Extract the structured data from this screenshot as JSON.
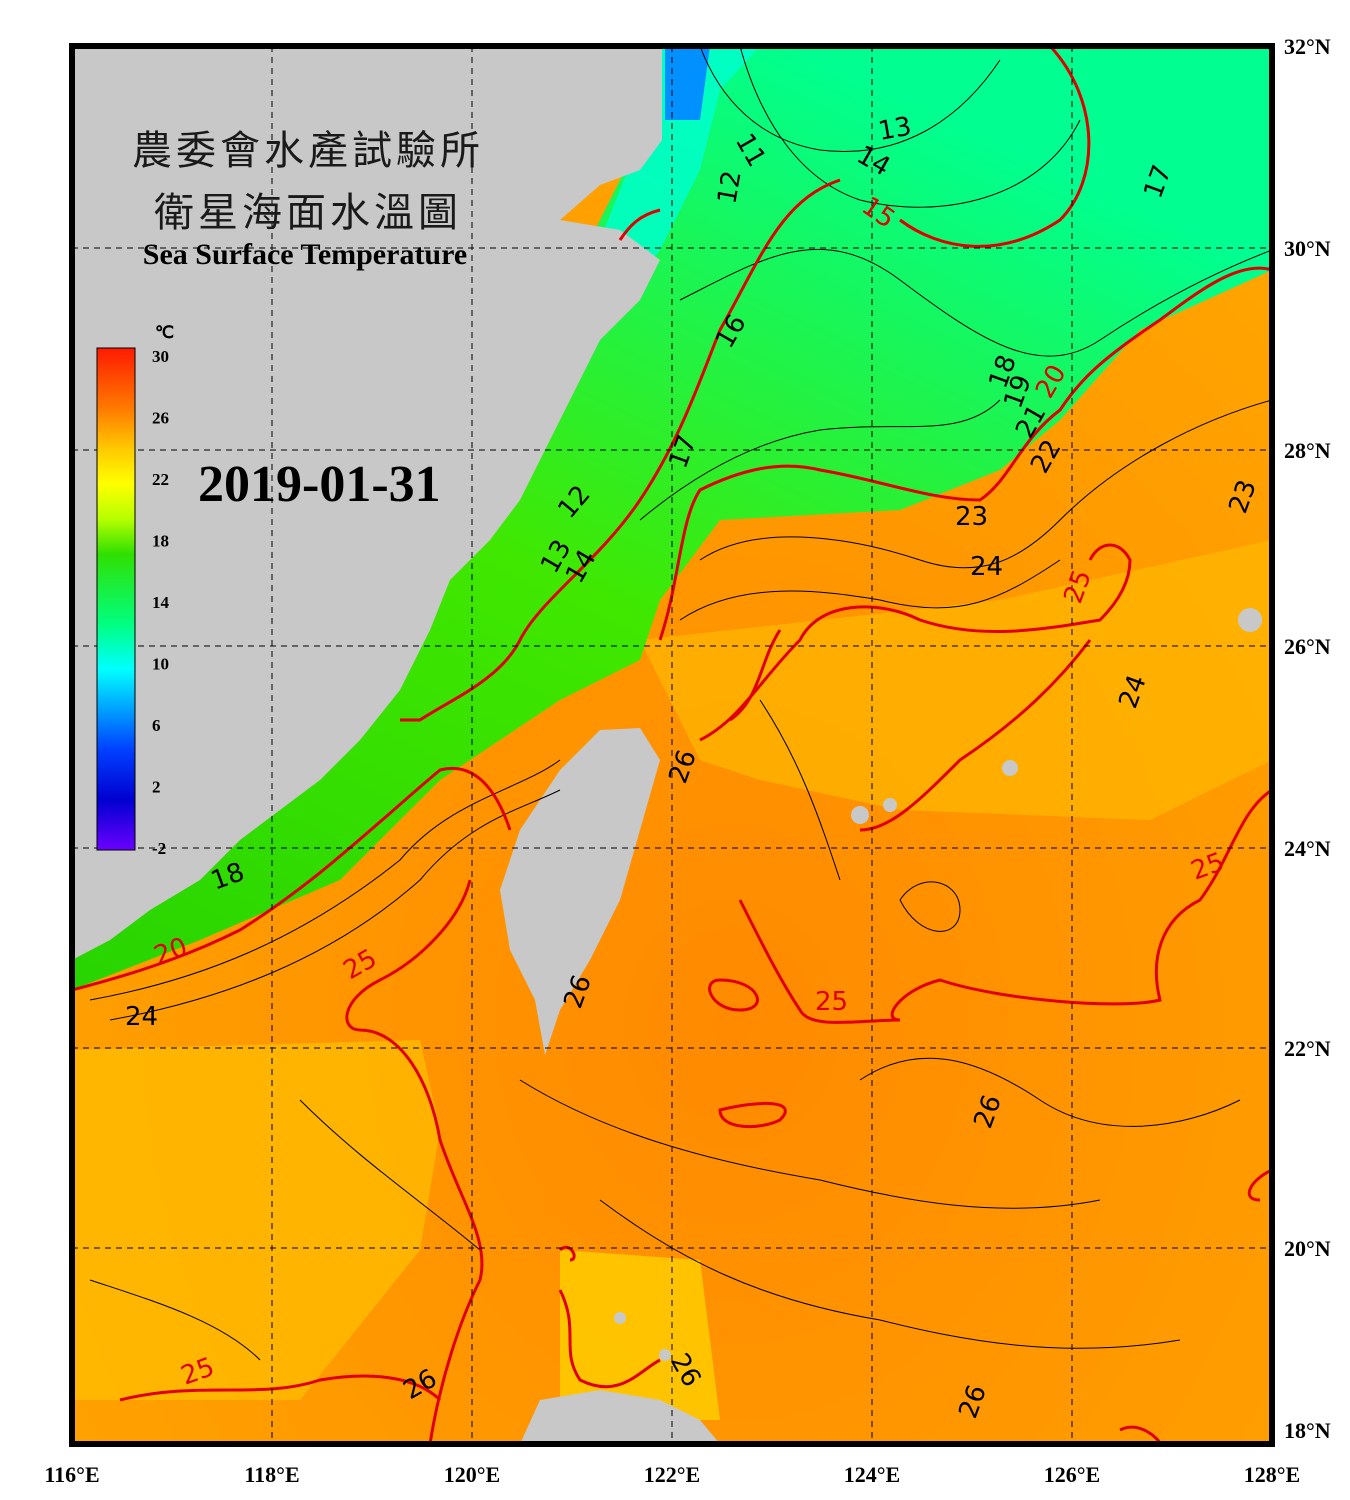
{
  "title": {
    "line1": "農委會水產試驗所",
    "line2": "衛星海面水溫圖",
    "english": "Sea Surface Temperature"
  },
  "date": "2019-01-31",
  "colorbar": {
    "unit": "℃",
    "ticks": [
      "30",
      "26",
      "22",
      "18",
      "14",
      "10",
      "6",
      "2",
      "-2"
    ],
    "colors": [
      "#ff1a00",
      "#ff7a00",
      "#ffc800",
      "#ffff00",
      "#b8ff00",
      "#30e000",
      "#00ff80",
      "#00ffff",
      "#00a0ff",
      "#0040ff",
      "#0000d0",
      "#6a00ff"
    ]
  },
  "axes": {
    "lon_labels": [
      "116°E",
      "118°E",
      "120°E",
      "122°E",
      "124°E",
      "126°E",
      "128°E"
    ],
    "lat_labels": [
      "32°N",
      "30°N",
      "28°N",
      "26°N",
      "24°N",
      "22°N",
      "20°N",
      "18°N"
    ]
  },
  "contour_labels": [
    {
      "text": "13",
      "color": "#000"
    },
    {
      "text": "14",
      "color": "#000"
    },
    {
      "text": "15",
      "color": "#e00000"
    },
    {
      "text": "17",
      "color": "#000"
    },
    {
      "text": "11",
      "color": "#000"
    },
    {
      "text": "12",
      "color": "#000"
    },
    {
      "text": "16",
      "color": "#000"
    },
    {
      "text": "18",
      "color": "#000"
    },
    {
      "text": "19",
      "color": "#000"
    },
    {
      "text": "20",
      "color": "#e00000"
    },
    {
      "text": "21",
      "color": "#000"
    },
    {
      "text": "22",
      "color": "#000"
    },
    {
      "text": "23",
      "color": "#000"
    },
    {
      "text": "24",
      "color": "#000"
    },
    {
      "text": "25",
      "color": "#e00000"
    },
    {
      "text": "26",
      "color": "#000"
    },
    {
      "text": "18",
      "color": "#000"
    },
    {
      "text": "20",
      "color": "#e00000"
    },
    {
      "text": "24",
      "color": "#000"
    },
    {
      "text": "25",
      "color": "#e00000"
    },
    {
      "text": "26",
      "color": "#000"
    },
    {
      "text": "25",
      "color": "#e00000"
    },
    {
      "text": "26",
      "color": "#000"
    },
    {
      "text": "25",
      "color": "#e00000"
    },
    {
      "text": "26",
      "color": "#000"
    },
    {
      "text": "26",
      "color": "#000"
    },
    {
      "text": "25",
      "color": "#e00000"
    },
    {
      "text": "26",
      "color": "#000"
    },
    {
      "text": "24",
      "color": "#000"
    },
    {
      "text": "23",
      "color": "#000"
    },
    {
      "text": "12",
      "color": "#000"
    },
    {
      "text": "13",
      "color": "#000"
    },
    {
      "text": "14",
      "color": "#000"
    },
    {
      "text": "17",
      "color": "#000"
    }
  ]
}
